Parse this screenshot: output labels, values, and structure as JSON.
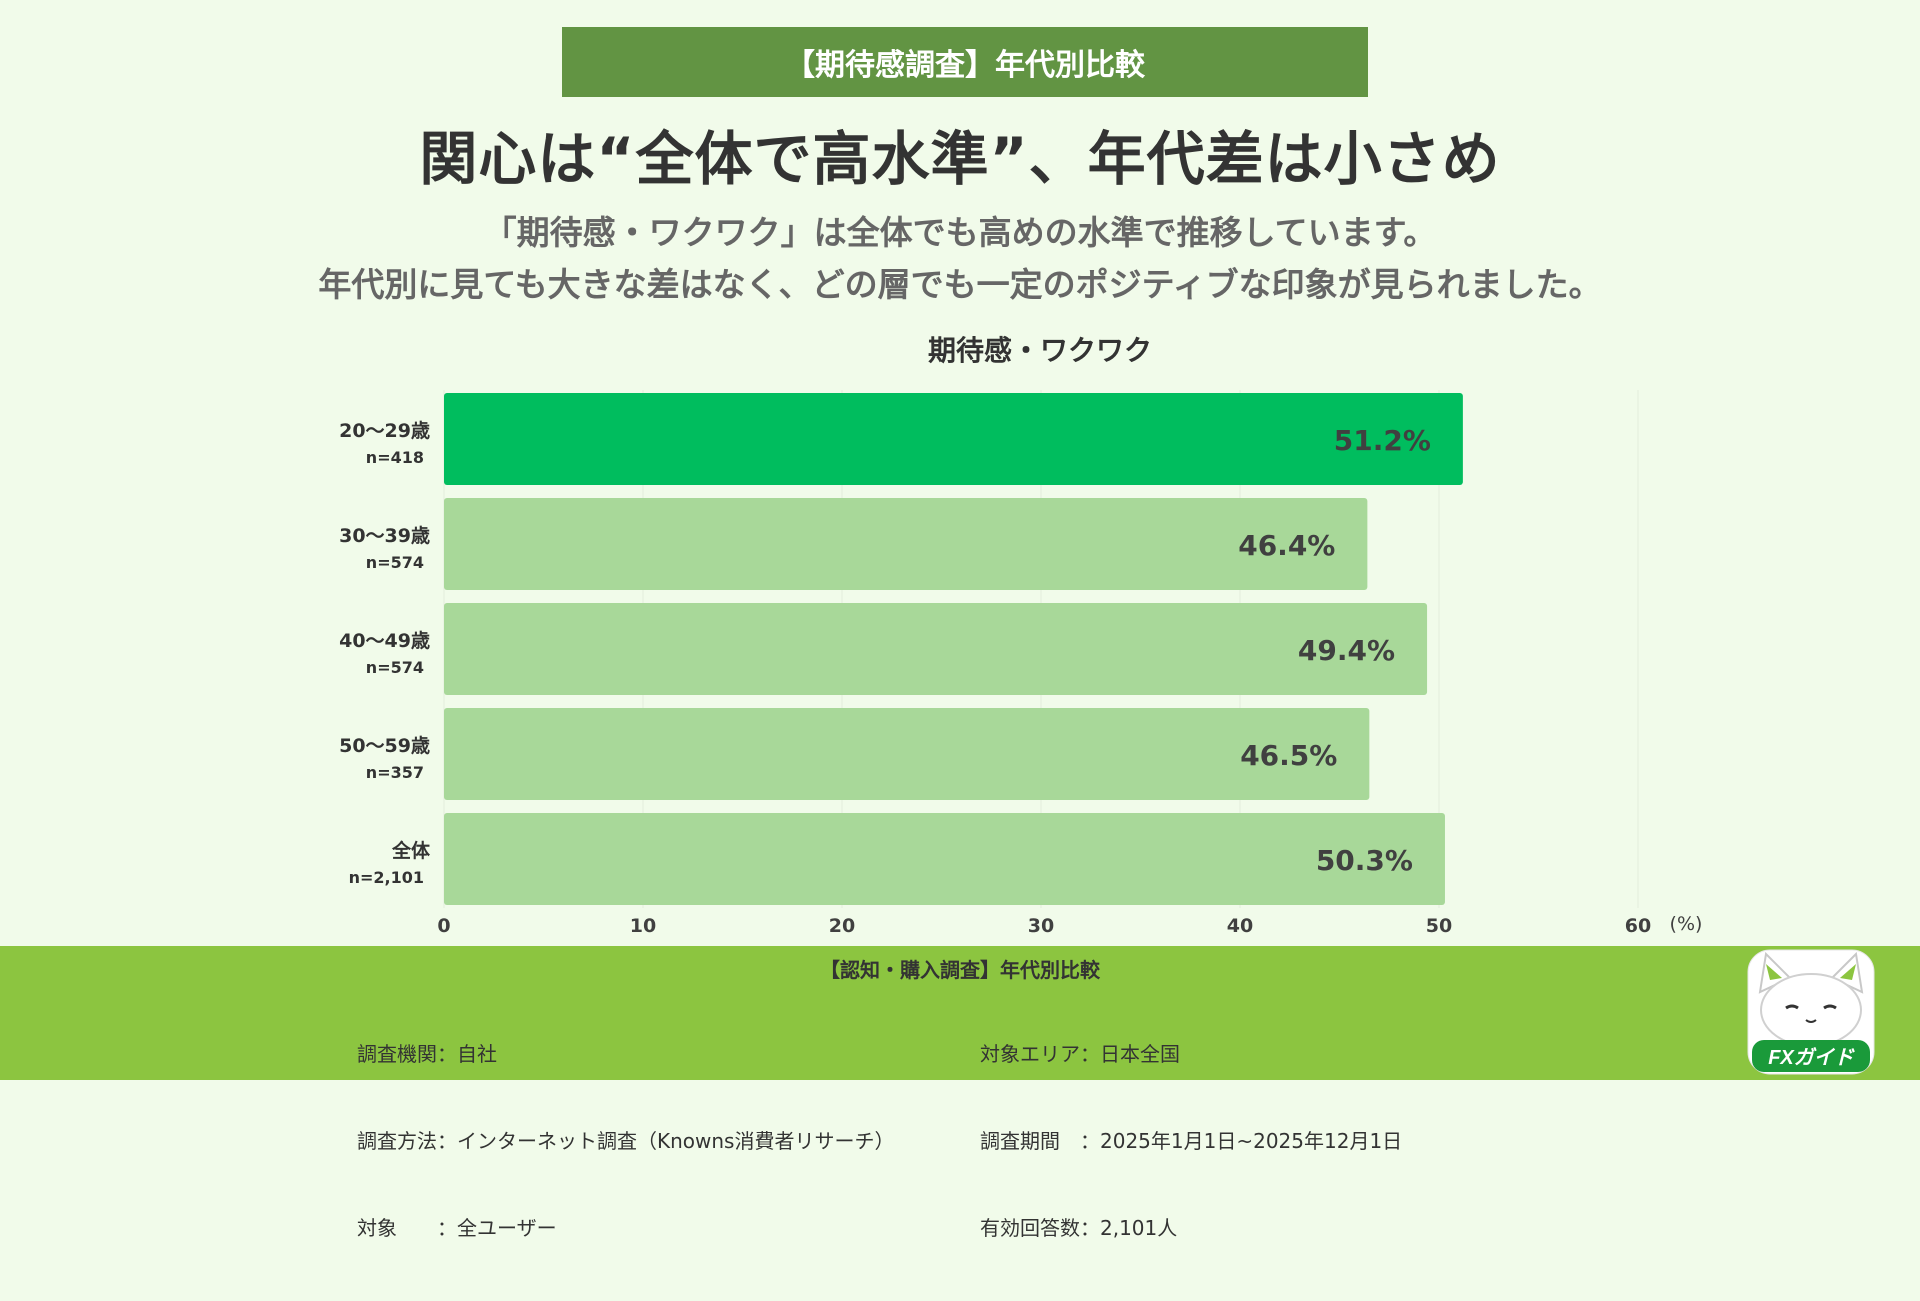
{
  "header": {
    "banner": "【期待感調査】年代別比較",
    "headline": "関心は“全体で高水準”、年代差は小さめ",
    "sub1": "「期待感・ワクワク」は全体でも高めの水準で推移しています。",
    "sub2": "年代別に見ても大きな差はなく、どの層でも一定のポジティブな印象が見られました。"
  },
  "chart_data": {
    "type": "bar",
    "orientation": "horizontal",
    "title": "期待感・ワクワク",
    "categories": [
      "20〜29歳",
      "30〜39歳",
      "40〜49歳",
      "50〜59歳",
      "全体"
    ],
    "samples": [
      "n=418",
      "n=574",
      "n=574",
      "n=357",
      "n=2,101"
    ],
    "values": [
      51.2,
      46.4,
      49.4,
      46.5,
      50.3
    ],
    "value_labels": [
      "51.2%",
      "46.4%",
      "49.4%",
      "46.5%",
      "50.3%"
    ],
    "highlight_index": 0,
    "xlim": [
      0,
      60
    ],
    "xticks": [
      0,
      10,
      20,
      30,
      40,
      50,
      60
    ],
    "xunit": "(%)",
    "colors": {
      "highlight": "#00bd5e",
      "normal": "#a8d899",
      "grid": "#e3ecdc"
    }
  },
  "footer": {
    "title": "【認知・購入調査】年代別比較",
    "left": [
      "調査機関：自社",
      "調査方法：インターネット調査（Knowns消費者リサーチ）",
      "対象　　：全ユーザー"
    ],
    "right": [
      "対象エリア：日本全国",
      "調査期間　：2025年1月1日~2025年12月1日",
      "有効回答数：2,101人"
    ]
  },
  "logo": {
    "text": "FXガイド"
  }
}
